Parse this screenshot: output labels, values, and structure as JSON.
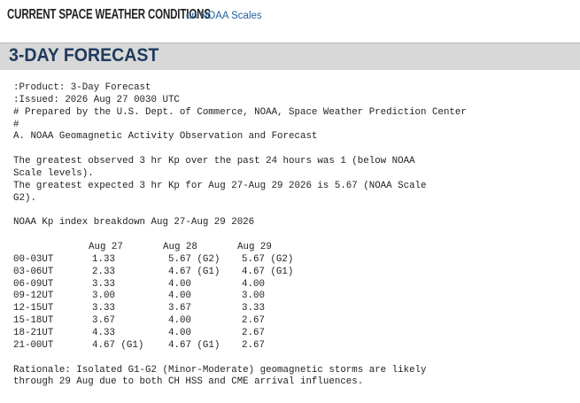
{
  "header": {
    "title": "CURRENT SPACE WEATHER CONDITIONS",
    "subtitle": "on NOAA Scales"
  },
  "section_title": "3-DAY FORECAST",
  "intro": [
    ":Product: 3-Day Forecast",
    ":Issued: 2026 Aug 27 0030 UTC",
    "# Prepared by the U.S. Dept. of Commerce, NOAA, Space Weather Prediction Center",
    "#",
    "A. NOAA Geomagnetic Activity Observation and Forecast"
  ],
  "summary": [
    "The greatest observed 3 hr Kp over the past 24 hours was 1 (below NOAA",
    "Scale levels).",
    "The greatest expected 3 hr Kp for Aug 27-Aug 29 2026 is 5.67 (NOAA Scale",
    "G2)."
  ],
  "breakdown": {
    "title": "NOAA Kp index breakdown Aug 27-Aug 29 2026",
    "columns": [
      "Aug 27",
      "Aug 28",
      "Aug 29"
    ],
    "rows": [
      [
        "00-03UT",
        "1.33",
        "5.67 (G2)",
        "5.67 (G2)"
      ],
      [
        "03-06UT",
        "2.33",
        "4.67 (G1)",
        "4.67 (G1)"
      ],
      [
        "06-09UT",
        "3.33",
        "4.00",
        "4.00"
      ],
      [
        "09-12UT",
        "3.00",
        "4.00",
        "3.00"
      ],
      [
        "12-15UT",
        "3.33",
        "3.67",
        "3.33"
      ],
      [
        "15-18UT",
        "3.67",
        "4.00",
        "2.67"
      ],
      [
        "18-21UT",
        "4.33",
        "4.00",
        "2.67"
      ],
      [
        "21-00UT",
        "4.67 (G1)",
        "4.67 (G1)",
        "2.67"
      ]
    ]
  },
  "rationale": [
    "Rationale: Isolated G1-G2 (Minor-Moderate) geomagnetic storms are likely",
    "through 29 Aug due to both CH HSS and CME arrival influences."
  ]
}
